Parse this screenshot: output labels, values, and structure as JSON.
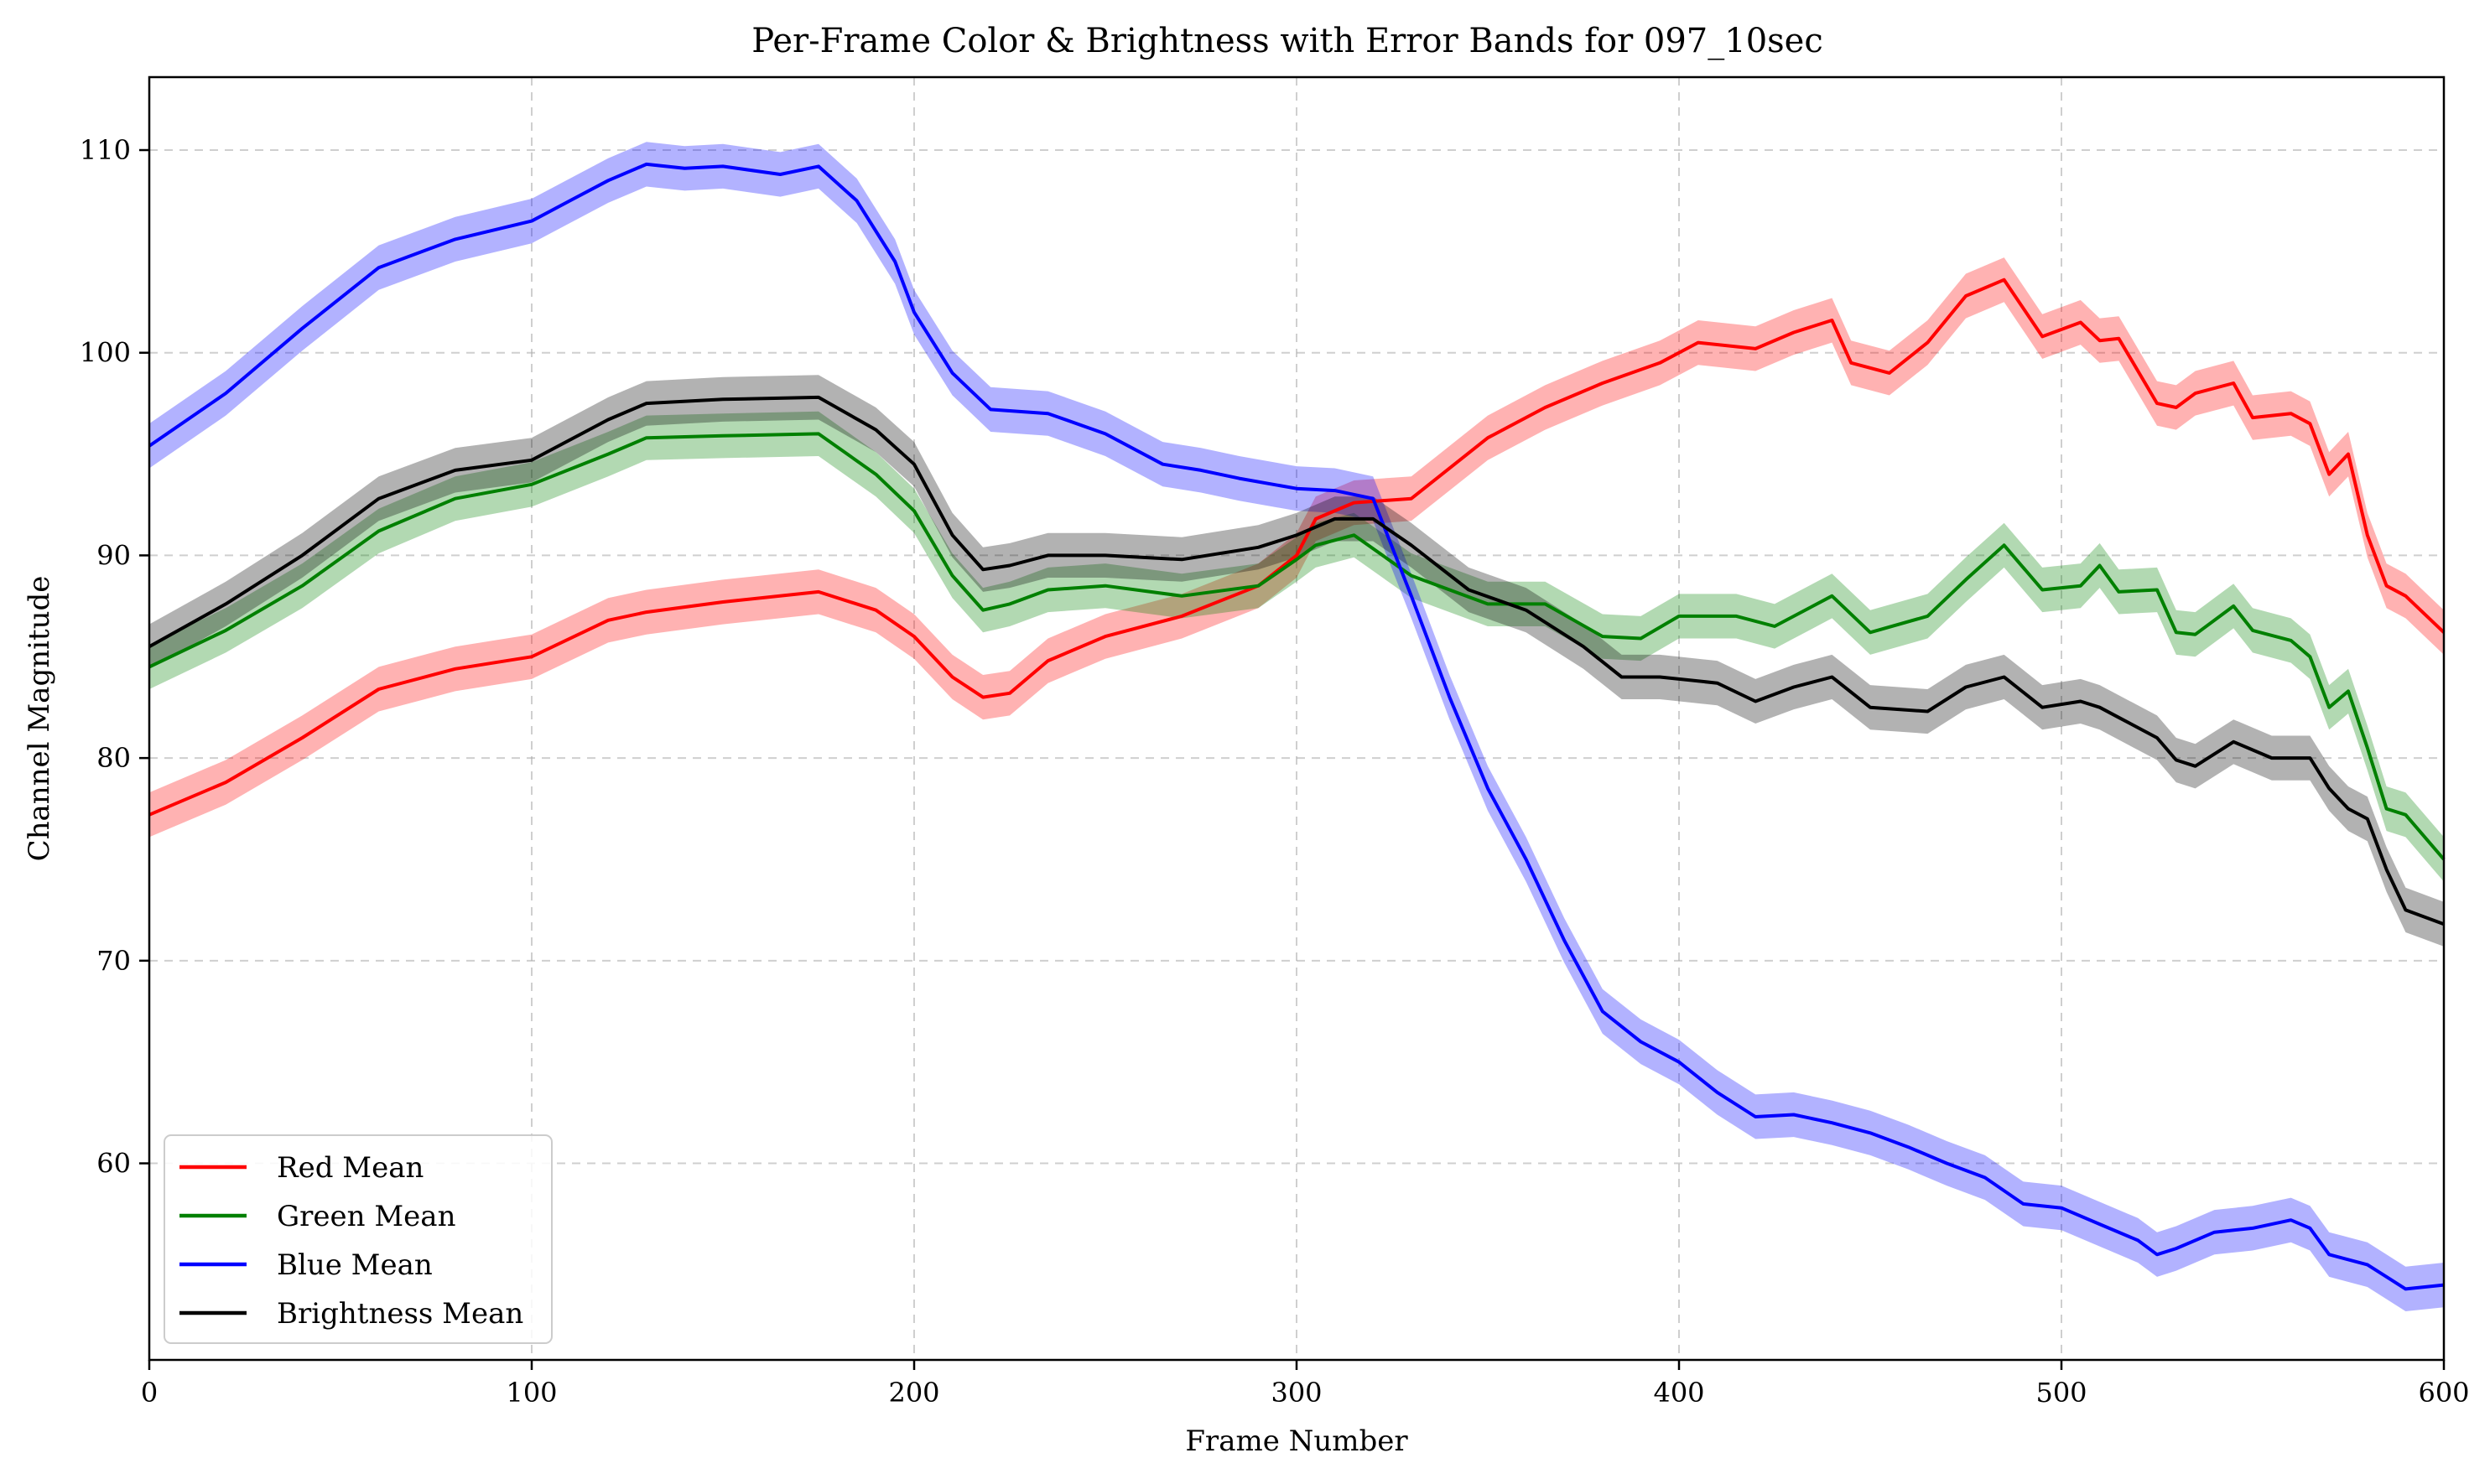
{
  "chart_data": {
    "type": "line",
    "title": "Per-Frame Color & Brightness with Error Bands for 097_10sec",
    "xlabel": "Frame Number",
    "ylabel": "Channel Magnitude",
    "xlim": [
      0,
      600
    ],
    "ylim": [
      50.3,
      113.6
    ],
    "xticks": [
      0,
      100,
      200,
      300,
      400,
      500,
      600
    ],
    "yticks": [
      60,
      70,
      80,
      90,
      100,
      110
    ],
    "grid": true,
    "legend_position": "lower-left",
    "band_halfwidth": 1.1,
    "series": [
      {
        "name": "Red Mean",
        "color": "#ff0000",
        "x": [
          0,
          20,
          40,
          60,
          80,
          100,
          120,
          130,
          150,
          175,
          190,
          200,
          210,
          218,
          225,
          235,
          250,
          270,
          290,
          300,
          305,
          315,
          330,
          350,
          365,
          380,
          395,
          405,
          420,
          430,
          440,
          445,
          455,
          465,
          475,
          485,
          495,
          505,
          510,
          515,
          525,
          530,
          535,
          545,
          550,
          560,
          565,
          570,
          575,
          580,
          585,
          590,
          600
        ],
        "values": [
          77.2,
          78.8,
          81.0,
          83.4,
          84.4,
          85.0,
          86.8,
          87.2,
          87.7,
          88.2,
          87.3,
          86.0,
          84.0,
          83.0,
          83.2,
          84.8,
          86.0,
          87.0,
          88.5,
          90.0,
          91.8,
          92.6,
          92.8,
          95.8,
          97.3,
          98.5,
          99.5,
          100.5,
          100.2,
          101.0,
          101.6,
          99.5,
          99.0,
          100.5,
          102.8,
          103.6,
          100.8,
          101.5,
          100.6,
          100.7,
          97.5,
          97.3,
          98.0,
          98.5,
          96.8,
          97.0,
          96.5,
          94.0,
          95.0,
          91.0,
          88.5,
          88.0,
          86.2
        ]
      },
      {
        "name": "Green Mean",
        "color": "#008000",
        "x": [
          0,
          20,
          40,
          60,
          80,
          100,
          120,
          130,
          150,
          175,
          190,
          200,
          210,
          218,
          225,
          235,
          250,
          270,
          290,
          300,
          305,
          315,
          330,
          350,
          365,
          380,
          390,
          400,
          415,
          425,
          440,
          450,
          465,
          475,
          485,
          495,
          505,
          510,
          515,
          525,
          530,
          535,
          545,
          550,
          560,
          565,
          570,
          575,
          580,
          585,
          590,
          600
        ],
        "values": [
          84.5,
          86.3,
          88.5,
          91.2,
          92.8,
          93.5,
          95.0,
          95.8,
          95.9,
          96.0,
          94.0,
          92.2,
          89.0,
          87.3,
          87.6,
          88.3,
          88.5,
          88.0,
          88.5,
          89.8,
          90.5,
          91.0,
          89.0,
          87.6,
          87.6,
          86.0,
          85.9,
          87.0,
          87.0,
          86.5,
          88.0,
          86.2,
          87.0,
          88.8,
          90.5,
          88.3,
          88.5,
          89.5,
          88.2,
          88.3,
          86.2,
          86.1,
          87.5,
          86.3,
          85.8,
          85.0,
          82.5,
          83.3,
          80.5,
          77.5,
          77.2,
          75.0
        ]
      },
      {
        "name": "Blue Mean",
        "color": "#0000ff",
        "x": [
          0,
          20,
          40,
          60,
          80,
          100,
          110,
          120,
          130,
          140,
          150,
          165,
          175,
          185,
          195,
          200,
          210,
          220,
          235,
          250,
          265,
          275,
          285,
          300,
          310,
          320,
          330,
          340,
          350,
          360,
          370,
          380,
          390,
          400,
          410,
          420,
          430,
          440,
          450,
          460,
          470,
          480,
          490,
          500,
          510,
          520,
          525,
          530,
          540,
          550,
          560,
          565,
          570,
          580,
          590,
          600
        ],
        "values": [
          95.4,
          98.0,
          101.2,
          104.2,
          105.6,
          106.5,
          107.5,
          108.5,
          109.3,
          109.1,
          109.2,
          108.8,
          109.2,
          107.5,
          104.5,
          102.0,
          99.0,
          97.2,
          97.0,
          96.0,
          94.5,
          94.2,
          93.8,
          93.3,
          93.2,
          92.8,
          88.0,
          83.0,
          78.5,
          75.0,
          71.0,
          67.5,
          66.0,
          65.0,
          63.5,
          62.3,
          62.4,
          62.0,
          61.5,
          60.8,
          60.0,
          59.3,
          58.0,
          57.8,
          57.0,
          56.2,
          55.5,
          55.8,
          56.6,
          56.8,
          57.2,
          56.8,
          55.5,
          55.0,
          53.8,
          54.0
        ]
      },
      {
        "name": "Brightness Mean",
        "color": "#000000",
        "x": [
          0,
          20,
          40,
          60,
          80,
          100,
          120,
          130,
          150,
          175,
          190,
          200,
          210,
          218,
          225,
          235,
          250,
          270,
          290,
          300,
          310,
          320,
          330,
          345,
          360,
          375,
          385,
          395,
          410,
          420,
          430,
          440,
          450,
          465,
          475,
          485,
          495,
          505,
          510,
          515,
          525,
          530,
          535,
          545,
          555,
          565,
          570,
          575,
          580,
          585,
          590,
          600
        ],
        "values": [
          85.5,
          87.6,
          90.0,
          92.8,
          94.2,
          94.7,
          96.7,
          97.5,
          97.7,
          97.8,
          96.2,
          94.5,
          91.0,
          89.3,
          89.5,
          90.0,
          90.0,
          89.8,
          90.4,
          91.0,
          91.8,
          91.8,
          90.5,
          88.3,
          87.3,
          85.5,
          84.0,
          84.0,
          83.7,
          82.8,
          83.5,
          84.0,
          82.5,
          82.3,
          83.5,
          84.0,
          82.5,
          82.8,
          82.5,
          82.0,
          81.0,
          79.9,
          79.6,
          80.8,
          80.0,
          80.0,
          78.5,
          77.5,
          77.0,
          74.5,
          72.5,
          71.8
        ]
      }
    ]
  }
}
